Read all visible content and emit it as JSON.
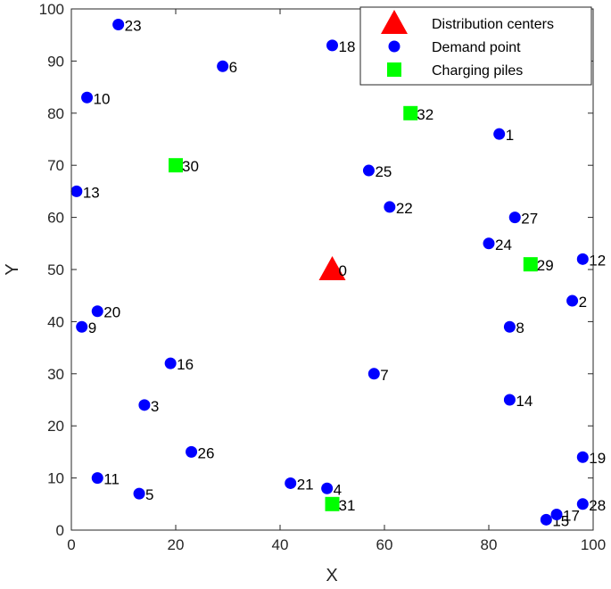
{
  "chart_data": {
    "type": "scatter",
    "xlabel": "X",
    "ylabel": "Y",
    "xlim": [
      0,
      100
    ],
    "ylim": [
      0,
      100
    ],
    "xticks": [
      0,
      20,
      40,
      60,
      80,
      100
    ],
    "yticks": [
      0,
      10,
      20,
      30,
      40,
      50,
      60,
      70,
      80,
      90,
      100
    ],
    "grid": false,
    "legend_position": "top-right",
    "series": [
      {
        "name": "Distribution centers",
        "marker": "triangle",
        "color": "#ff0000",
        "points": [
          {
            "id": "0",
            "x": 50,
            "y": 50
          }
        ]
      },
      {
        "name": "Demand point",
        "marker": "circle",
        "color": "#0000ff",
        "points": [
          {
            "id": "1",
            "x": 82,
            "y": 76
          },
          {
            "id": "2",
            "x": 96,
            "y": 44
          },
          {
            "id": "3",
            "x": 14,
            "y": 24
          },
          {
            "id": "4",
            "x": 49,
            "y": 8
          },
          {
            "id": "5",
            "x": 13,
            "y": 7
          },
          {
            "id": "6",
            "x": 29,
            "y": 89
          },
          {
            "id": "7",
            "x": 58,
            "y": 30
          },
          {
            "id": "8",
            "x": 84,
            "y": 39
          },
          {
            "id": "9",
            "x": 2,
            "y": 39
          },
          {
            "id": "10",
            "x": 3,
            "y": 83
          },
          {
            "id": "11",
            "x": 5,
            "y": 10
          },
          {
            "id": "12",
            "x": 98,
            "y": 52
          },
          {
            "id": "13",
            "x": 1,
            "y": 65
          },
          {
            "id": "14",
            "x": 84,
            "y": 25
          },
          {
            "id": "15",
            "x": 91,
            "y": 2
          },
          {
            "id": "16",
            "x": 19,
            "y": 32
          },
          {
            "id": "17",
            "x": 93,
            "y": 3
          },
          {
            "id": "18",
            "x": 50,
            "y": 93
          },
          {
            "id": "19",
            "x": 98,
            "y": 14
          },
          {
            "id": "20",
            "x": 5,
            "y": 42
          },
          {
            "id": "21",
            "x": 42,
            "y": 9
          },
          {
            "id": "22",
            "x": 61,
            "y": 62
          },
          {
            "id": "23",
            "x": 9,
            "y": 97
          },
          {
            "id": "24",
            "x": 80,
            "y": 55
          },
          {
            "id": "25",
            "x": 57,
            "y": 69
          },
          {
            "id": "26",
            "x": 23,
            "y": 15
          },
          {
            "id": "27",
            "x": 85,
            "y": 60
          },
          {
            "id": "28",
            "x": 98,
            "y": 5
          }
        ]
      },
      {
        "name": "Charging piles",
        "marker": "square",
        "color": "#00ff00",
        "points": [
          {
            "id": "29",
            "x": 88,
            "y": 51
          },
          {
            "id": "30",
            "x": 20,
            "y": 70
          },
          {
            "id": "31",
            "x": 50,
            "y": 5
          },
          {
            "id": "32",
            "x": 65,
            "y": 80
          }
        ]
      }
    ]
  }
}
